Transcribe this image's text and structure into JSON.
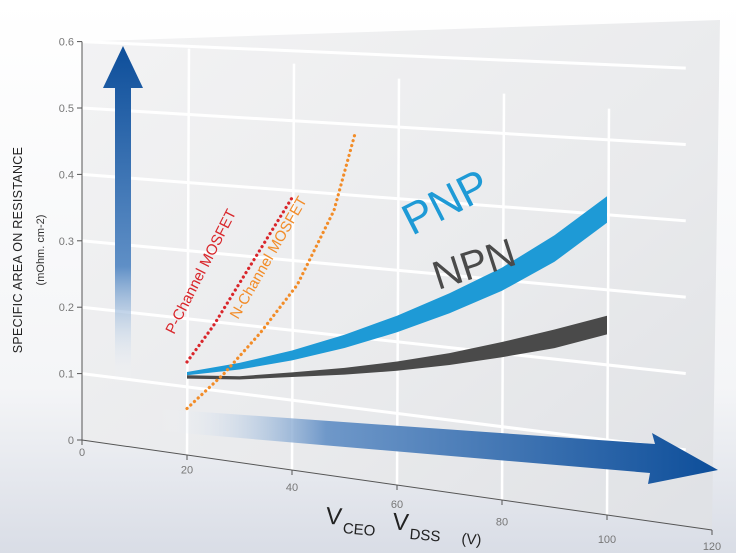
{
  "colors": {
    "pnp": "#1e9ad6",
    "npn": "#4a4a4a",
    "p_mosfet": "#d9262b",
    "n_mosfet": "#f28c28",
    "arrow": "#1a5aa3",
    "axis": "#555555"
  },
  "chart_data": {
    "type": "line",
    "title": "",
    "ylabel": "SPECIFIC AREA ON RESISTANCE",
    "ylabel_unit": "(mOhm. cm-2)",
    "xlabel_parts": {
      "v1_main": "V",
      "v1_sub": "CEO",
      "v2_main": "V",
      "v2_sub": "DSS",
      "unit": "(V)"
    },
    "xlim": [
      0,
      120
    ],
    "ylim": [
      0,
      0.6
    ],
    "x_ticks": [
      "0",
      "20",
      "40",
      "60",
      "80",
      "100",
      "120"
    ],
    "y_ticks": [
      "0",
      "0.1",
      "0.2",
      "0.3",
      "0.4",
      "0.5",
      "0.6"
    ],
    "grid": true,
    "series": [
      {
        "name": "PNP",
        "style": "band",
        "color_key": "pnp",
        "x": [
          20,
          30,
          40,
          50,
          60,
          70,
          80,
          90,
          100
        ],
        "y_low": [
          0.12,
          0.14,
          0.165,
          0.195,
          0.23,
          0.27,
          0.315,
          0.37,
          0.44
        ],
        "y_high": [
          0.125,
          0.15,
          0.18,
          0.215,
          0.255,
          0.3,
          0.35,
          0.41,
          0.48
        ]
      },
      {
        "name": "NPN",
        "style": "band",
        "color_key": "npn",
        "x": [
          20,
          30,
          40,
          50,
          60,
          70,
          80,
          90,
          100
        ],
        "y_low": [
          0.115,
          0.125,
          0.14,
          0.155,
          0.172,
          0.192,
          0.215,
          0.24,
          0.272
        ],
        "y_high": [
          0.12,
          0.13,
          0.147,
          0.165,
          0.186,
          0.21,
          0.238,
          0.268,
          0.3
        ]
      },
      {
        "name": "P-Channel MOSFET",
        "style": "dotted",
        "color_key": "p_mosfet",
        "x": [
          20,
          25,
          30,
          35,
          40
        ],
        "y": [
          0.14,
          0.2,
          0.27,
          0.34,
          0.41
        ]
      },
      {
        "name": "N-Channel MOSFET",
        "style": "dotted",
        "color_key": "n_mosfet",
        "x": [
          20,
          27,
          34,
          41,
          48,
          52
        ],
        "y": [
          0.07,
          0.13,
          0.2,
          0.28,
          0.4,
          0.52
        ]
      }
    ]
  }
}
